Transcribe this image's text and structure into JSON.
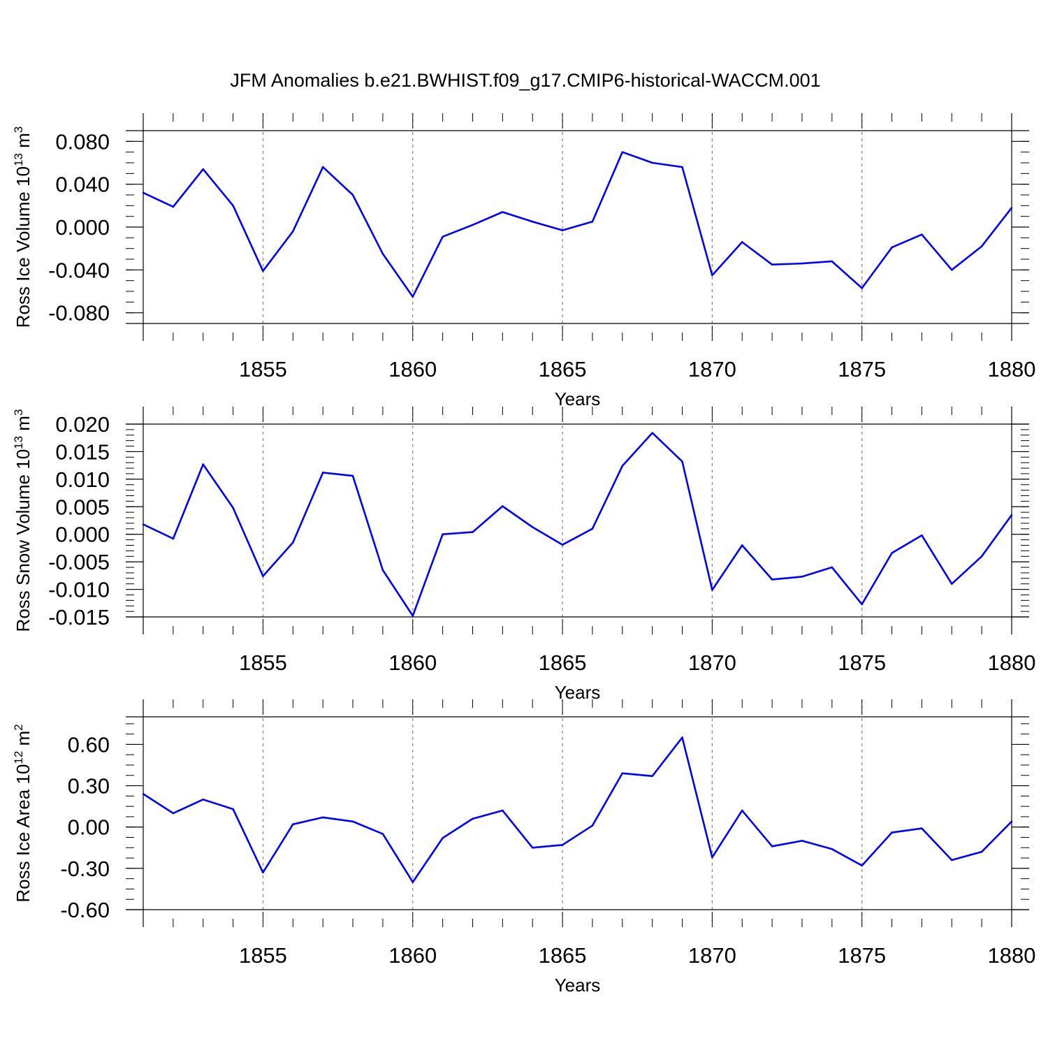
{
  "title": "JFM Anomalies b.e21.BWHIST.f09_g17.CMIP6-historical-WACCM.001",
  "colors": {
    "line": "#0000ff",
    "axis": "#000000",
    "grid": "#808080"
  },
  "chart_data": [
    {
      "type": "line",
      "xlabel": "Years",
      "ylabel": "Ross Ice Volume 10",
      "ylabel_exp": "13",
      "ylabel_unit": " m",
      "ylabel_unit_exp": "3",
      "xlim": [
        1851,
        1880
      ],
      "ylim": [
        -0.09,
        0.09
      ],
      "yticks": [
        -0.08,
        -0.04,
        0.0,
        0.04,
        0.08
      ],
      "ytick_labels": [
        "-0.080",
        "-0.040",
        "0.000",
        "0.040",
        "0.080"
      ],
      "yminor_step": 0.01,
      "xticks": [
        1855,
        1860,
        1865,
        1870,
        1875,
        1880
      ],
      "xtick_labels": [
        "1855",
        "1860",
        "1865",
        "1870",
        "1875",
        "1880"
      ],
      "vgrid": [
        1855,
        1860,
        1865,
        1870,
        1875
      ],
      "x": [
        1851,
        1852,
        1853,
        1854,
        1855,
        1856,
        1857,
        1858,
        1859,
        1860,
        1861,
        1862,
        1863,
        1864,
        1865,
        1866,
        1867,
        1868,
        1869,
        1870,
        1871,
        1872,
        1873,
        1874,
        1875,
        1876,
        1877,
        1878,
        1879,
        1880
      ],
      "y": [
        0.032,
        0.019,
        0.054,
        0.02,
        -0.041,
        -0.004,
        0.056,
        0.03,
        -0.025,
        -0.065,
        -0.009,
        0.002,
        0.014,
        0.005,
        -0.003,
        0.005,
        0.07,
        0.06,
        0.056,
        -0.045,
        -0.014,
        -0.035,
        -0.034,
        -0.032,
        -0.057,
        -0.019,
        -0.007,
        -0.04,
        -0.018,
        0.018
      ]
    },
    {
      "type": "line",
      "xlabel": "Years",
      "ylabel": "Ross Snow Volume 10",
      "ylabel_exp": "13",
      "ylabel_unit": " m",
      "ylabel_unit_exp": "3",
      "xlim": [
        1851,
        1880
      ],
      "ylim": [
        -0.015,
        0.02
      ],
      "yticks": [
        -0.015,
        -0.01,
        -0.005,
        0.0,
        0.005,
        0.01,
        0.015,
        0.02
      ],
      "ytick_labels": [
        "-0.015",
        "-0.010",
        "-0.005",
        "0.000",
        "0.005",
        "0.010",
        "0.015",
        "0.020"
      ],
      "yminor_step": 0.001,
      "xticks": [
        1855,
        1860,
        1865,
        1870,
        1875,
        1880
      ],
      "xtick_labels": [
        "1855",
        "1860",
        "1865",
        "1870",
        "1875",
        "1880"
      ],
      "vgrid": [
        1855,
        1860,
        1865,
        1870,
        1875
      ],
      "x": [
        1851,
        1852,
        1853,
        1854,
        1855,
        1856,
        1857,
        1858,
        1859,
        1860,
        1861,
        1862,
        1863,
        1864,
        1865,
        1866,
        1867,
        1868,
        1869,
        1870,
        1871,
        1872,
        1873,
        1874,
        1875,
        1876,
        1877,
        1878,
        1879,
        1880
      ],
      "y": [
        0.0018,
        -0.0008,
        0.0127,
        0.0048,
        -0.0076,
        -0.0015,
        0.0112,
        0.0106,
        -0.0065,
        -0.0148,
        0.0,
        0.0004,
        0.0051,
        0.0013,
        -0.0019,
        0.001,
        0.0124,
        0.0184,
        0.0132,
        -0.0101,
        -0.002,
        -0.0082,
        -0.0077,
        -0.006,
        -0.0127,
        -0.0034,
        -0.0002,
        -0.009,
        -0.004,
        0.0035
      ]
    },
    {
      "type": "line",
      "xlabel": "Years",
      "ylabel": "Ross Ice Area 10",
      "ylabel_exp": "12",
      "ylabel_unit": " m",
      "ylabel_unit_exp": "2",
      "xlim": [
        1851,
        1880
      ],
      "ylim": [
        -0.6,
        0.8
      ],
      "yticks": [
        -0.6,
        -0.3,
        0.0,
        0.3,
        0.6
      ],
      "ytick_labels": [
        "-0.60",
        "-0.30",
        "0.00",
        "0.30",
        "0.60"
      ],
      "yminor_step": 0.075,
      "xticks": [
        1855,
        1860,
        1865,
        1870,
        1875,
        1880
      ],
      "xtick_labels": [
        "1855",
        "1860",
        "1865",
        "1870",
        "1875",
        "1880"
      ],
      "vgrid": [
        1855,
        1860,
        1865,
        1870,
        1875
      ],
      "x": [
        1851,
        1852,
        1853,
        1854,
        1855,
        1856,
        1857,
        1858,
        1859,
        1860,
        1861,
        1862,
        1863,
        1864,
        1865,
        1866,
        1867,
        1868,
        1869,
        1870,
        1871,
        1872,
        1873,
        1874,
        1875,
        1876,
        1877,
        1878,
        1879,
        1880
      ],
      "y": [
        0.24,
        0.1,
        0.2,
        0.13,
        -0.33,
        0.02,
        0.07,
        0.04,
        -0.05,
        -0.4,
        -0.08,
        0.06,
        0.12,
        -0.15,
        -0.13,
        0.01,
        0.39,
        0.37,
        0.65,
        -0.22,
        0.12,
        -0.14,
        -0.1,
        -0.16,
        -0.28,
        -0.04,
        -0.01,
        -0.24,
        -0.18,
        0.04
      ]
    }
  ]
}
